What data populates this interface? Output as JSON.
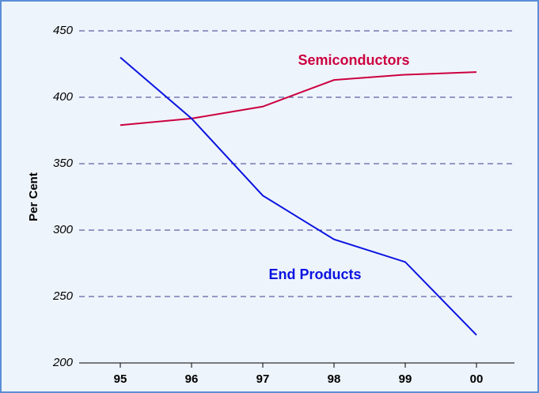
{
  "chart_data": {
    "type": "line",
    "categories": [
      "95",
      "96",
      "97",
      "98",
      "99",
      "00"
    ],
    "y_label": "Per Cent",
    "series": [
      {
        "name": "Semiconductors",
        "color": "#cc0040",
        "values": [
          379,
          384,
          393,
          413,
          417,
          419
        ]
      },
      {
        "name": "End Products",
        "color": "#0a14e0",
        "values": [
          430,
          384,
          326,
          293,
          276,
          221
        ]
      }
    ],
    "ylim": [
      200,
      450
    ],
    "yticks": [
      200,
      250,
      300,
      350,
      400,
      450
    ],
    "grid": true
  }
}
